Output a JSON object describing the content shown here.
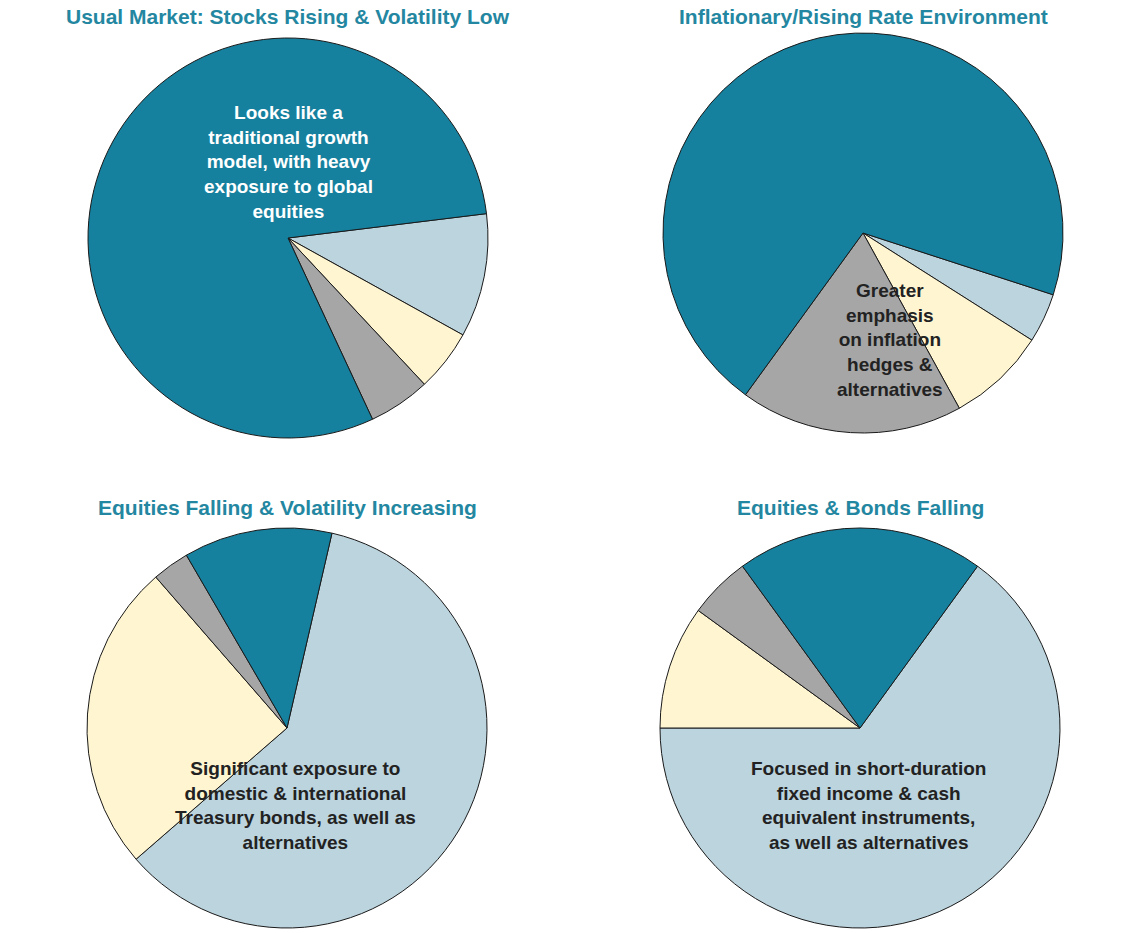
{
  "chart_data": [
    {
      "type": "pie",
      "title": "Usual Market: Stocks Rising & Volatility Low",
      "values": [
        10,
        5,
        5,
        80
      ],
      "colors": [
        "#bcd4de",
        "#fff5d1",
        "#a6a6a6",
        "#16819e"
      ],
      "annotation": "Looks like a\ntraditional growth\nmodel, with heavy\nexposure to global\nequities"
    },
    {
      "type": "pie",
      "title": "Inflationary/Rising Rate Environment",
      "values": [
        4,
        8,
        18,
        70
      ],
      "colors": [
        "#bcd4de",
        "#fff5d1",
        "#a6a6a6",
        "#16819e"
      ],
      "annotation": "Greater\nemphasis\non inflation\nhedges &\nalternatives"
    },
    {
      "type": "pie",
      "title": "Equities Falling & Volatility Increasing",
      "values": [
        60,
        25,
        3,
        12
      ],
      "colors": [
        "#bcd4de",
        "#fff5d1",
        "#a6a6a6",
        "#16819e"
      ],
      "annotation": "Significant exposure to\ndomestic & international\nTreasury bonds, as well as\nalternatives"
    },
    {
      "type": "pie",
      "title": "Equities & Bonds Falling",
      "values": [
        65,
        10,
        5,
        20
      ],
      "colors": [
        "#bcd4de",
        "#fff5d1",
        "#a6a6a6",
        "#16819e"
      ],
      "annotation": "Focused in short-duration\nfixed income & cash\nequivalent instruments,\nas well as alternatives"
    }
  ]
}
